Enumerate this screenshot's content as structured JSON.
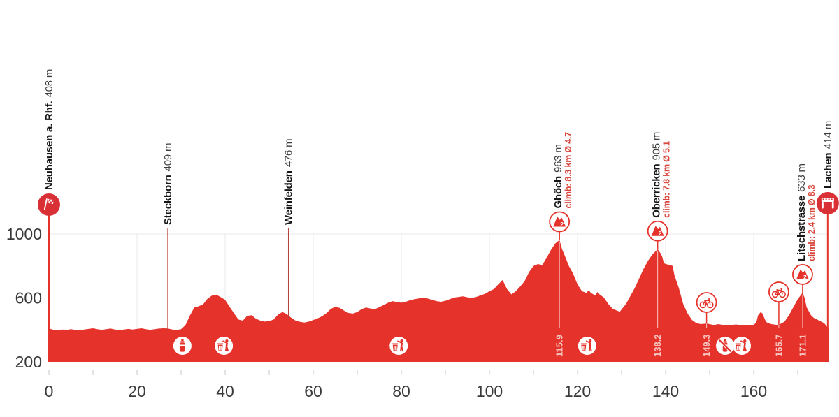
{
  "colors": {
    "red": "#e5332b",
    "badge_red": "#d93036",
    "dark_red_line": "#b5433c",
    "pink": "#f6c3bf",
    "climb_text": "#d9453b",
    "grid": "#e8e8e8",
    "tick": "#c9c9c9",
    "axis_text": "#3a3a3a",
    "label_dark": "#161616",
    "label_alt": "#3f3f3f"
  },
  "chart_data": {
    "type": "area",
    "title": "",
    "xlabel": "",
    "ylabel": "",
    "x_unit": "km",
    "y_unit": "m",
    "x_ticks": [
      0,
      20,
      40,
      60,
      80,
      100,
      120,
      140,
      160
    ],
    "x_minor_step": 10,
    "x_max_km": 177,
    "y_ticks": [
      200,
      600,
      1000
    ],
    "profile_points": [
      [
        0,
        408
      ],
      [
        1,
        401
      ],
      [
        2,
        398
      ],
      [
        3,
        402
      ],
      [
        4,
        400
      ],
      [
        5,
        404
      ],
      [
        6,
        400
      ],
      [
        7,
        398
      ],
      [
        8,
        402
      ],
      [
        9,
        406
      ],
      [
        10,
        410
      ],
      [
        11,
        404
      ],
      [
        12,
        400
      ],
      [
        13,
        404
      ],
      [
        14,
        408
      ],
      [
        15,
        402
      ],
      [
        16,
        398
      ],
      [
        17,
        402
      ],
      [
        18,
        406
      ],
      [
        19,
        402
      ],
      [
        20,
        406
      ],
      [
        21,
        410
      ],
      [
        22,
        404
      ],
      [
        23,
        400
      ],
      [
        24,
        404
      ],
      [
        25,
        408
      ],
      [
        26,
        410
      ],
      [
        27,
        409
      ],
      [
        28,
        402
      ],
      [
        29,
        400
      ],
      [
        30,
        404
      ],
      [
        31,
        430
      ],
      [
        32,
        490
      ],
      [
        33,
        540
      ],
      [
        34,
        548
      ],
      [
        35,
        560
      ],
      [
        36,
        595
      ],
      [
        37,
        615
      ],
      [
        38,
        620
      ],
      [
        39,
        605
      ],
      [
        40,
        588
      ],
      [
        41,
        545
      ],
      [
        42,
        505
      ],
      [
        43,
        465
      ],
      [
        44,
        458
      ],
      [
        45,
        488
      ],
      [
        46,
        492
      ],
      [
        47,
        470
      ],
      [
        48,
        458
      ],
      [
        49,
        452
      ],
      [
        50,
        455
      ],
      [
        51,
        465
      ],
      [
        52,
        495
      ],
      [
        53,
        512
      ],
      [
        54,
        498
      ],
      [
        55,
        476
      ],
      [
        56,
        458
      ],
      [
        57,
        450
      ],
      [
        58,
        446
      ],
      [
        59,
        452
      ],
      [
        60,
        462
      ],
      [
        61,
        472
      ],
      [
        62,
        485
      ],
      [
        63,
        505
      ],
      [
        64,
        532
      ],
      [
        65,
        545
      ],
      [
        66,
        538
      ],
      [
        67,
        520
      ],
      [
        68,
        506
      ],
      [
        69,
        502
      ],
      [
        70,
        512
      ],
      [
        71,
        530
      ],
      [
        72,
        540
      ],
      [
        73,
        534
      ],
      [
        74,
        530
      ],
      [
        75,
        542
      ],
      [
        76,
        556
      ],
      [
        77,
        570
      ],
      [
        78,
        580
      ],
      [
        79,
        574
      ],
      [
        80,
        570
      ],
      [
        81,
        576
      ],
      [
        82,
        586
      ],
      [
        83,
        592
      ],
      [
        84,
        597
      ],
      [
        85,
        602
      ],
      [
        86,
        596
      ],
      [
        87,
        588
      ],
      [
        88,
        580
      ],
      [
        89,
        576
      ],
      [
        90,
        582
      ],
      [
        91,
        592
      ],
      [
        92,
        602
      ],
      [
        93,
        606
      ],
      [
        94,
        610
      ],
      [
        95,
        604
      ],
      [
        96,
        600
      ],
      [
        97,
        606
      ],
      [
        98,
        616
      ],
      [
        99,
        626
      ],
      [
        100,
        642
      ],
      [
        101,
        655
      ],
      [
        102,
        685
      ],
      [
        103,
        712
      ],
      [
        104,
        655
      ],
      [
        105,
        622
      ],
      [
        106,
        642
      ],
      [
        107,
        672
      ],
      [
        108,
        705
      ],
      [
        109,
        762
      ],
      [
        110,
        800
      ],
      [
        111,
        812
      ],
      [
        112,
        806
      ],
      [
        113,
        852
      ],
      [
        114,
        902
      ],
      [
        115,
        942
      ],
      [
        115.9,
        963
      ],
      [
        116.5,
        905
      ],
      [
        117,
        872
      ],
      [
        118,
        802
      ],
      [
        119,
        752
      ],
      [
        120,
        685
      ],
      [
        121,
        642
      ],
      [
        122,
        632
      ],
      [
        122.6,
        648
      ],
      [
        123,
        632
      ],
      [
        124,
        616
      ],
      [
        124.6,
        638
      ],
      [
        125,
        622
      ],
      [
        126,
        602
      ],
      [
        127,
        562
      ],
      [
        128,
        532
      ],
      [
        129,
        520
      ],
      [
        129.6,
        514
      ],
      [
        130,
        528
      ],
      [
        131,
        562
      ],
      [
        132,
        612
      ],
      [
        133,
        662
      ],
      [
        134,
        722
      ],
      [
        135,
        782
      ],
      [
        136,
        832
      ],
      [
        137,
        872
      ],
      [
        138.2,
        905
      ],
      [
        138.8,
        882
      ],
      [
        139.2,
        860
      ],
      [
        139.6,
        818
      ],
      [
        140,
        812
      ],
      [
        141,
        806
      ],
      [
        141.6,
        800
      ],
      [
        142,
        742
      ],
      [
        143,
        662
      ],
      [
        144,
        562
      ],
      [
        145,
        502
      ],
      [
        146,
        462
      ],
      [
        147,
        442
      ],
      [
        148,
        436
      ],
      [
        149.3,
        440
      ],
      [
        150,
        436
      ],
      [
        151,
        431
      ],
      [
        152,
        436
      ],
      [
        153,
        431
      ],
      [
        154,
        428
      ],
      [
        155,
        431
      ],
      [
        156,
        434
      ],
      [
        157,
        429
      ],
      [
        158,
        431
      ],
      [
        159,
        428
      ],
      [
        160,
        431
      ],
      [
        160.6,
        448
      ],
      [
        161,
        492
      ],
      [
        161.6,
        512
      ],
      [
        162,
        502
      ],
      [
        162.6,
        462
      ],
      [
        163,
        446
      ],
      [
        164,
        436
      ],
      [
        165,
        432
      ],
      [
        165.7,
        430
      ],
      [
        166,
        436
      ],
      [
        167,
        452
      ],
      [
        168,
        492
      ],
      [
        169,
        542
      ],
      [
        170,
        592
      ],
      [
        171.1,
        633
      ],
      [
        171.6,
        598
      ],
      [
        172,
        542
      ],
      [
        173,
        492
      ],
      [
        173.6,
        476
      ],
      [
        174,
        470
      ],
      [
        175,
        456
      ],
      [
        176,
        442
      ],
      [
        176.6,
        421
      ],
      [
        177,
        414
      ]
    ]
  },
  "waypoints": [
    {
      "name": "Neuhausen a. Rhf.",
      "altitude": "408 m",
      "km": 0,
      "type": "start"
    },
    {
      "name": "Steckborn",
      "altitude": "409 m",
      "km": 27,
      "type": "town"
    },
    {
      "name": "Weinfelden",
      "altitude": "476 m",
      "km": 54.4,
      "type": "town"
    },
    {
      "name": "Ghöch",
      "altitude": "963 m",
      "km": 115.9,
      "type": "climb",
      "climb_info": "climb: 8.3 km Ø 4.7",
      "category_label": "2"
    },
    {
      "name": "Oberricken",
      "altitude": "905 m",
      "km": 138.2,
      "type": "climb",
      "climb_info": "climb: 7.8 km Ø 5.1",
      "category_label": "2"
    },
    {
      "name": "Litschstrasse",
      "altitude": "633 m",
      "km": 171.1,
      "type": "climb",
      "climb_info": "climb: 2.4 km Ø 8.3",
      "category_label": "2"
    },
    {
      "name": "Lachen",
      "altitude": "414 m",
      "km": 176.8,
      "type": "finish"
    }
  ],
  "km_markers": [
    {
      "label": "115.9",
      "km": 115.9,
      "kind": "summit"
    },
    {
      "label": "138.2",
      "km": 138.2,
      "kind": "summit"
    },
    {
      "label": "149.3",
      "km": 149.3,
      "kind": "sprint"
    },
    {
      "label": "165.7",
      "km": 165.7,
      "kind": "sprint"
    },
    {
      "label": "171.1",
      "km": 171.1,
      "kind": "summit"
    }
  ],
  "course_icons": [
    {
      "icon": "bottle-icon",
      "km": 30.3
    },
    {
      "icon": "waste-zone-icon",
      "km": 39.7
    },
    {
      "icon": "waste-zone-icon",
      "km": 79.4
    },
    {
      "icon": "waste-zone-icon",
      "km": 122.2
    },
    {
      "icon": "no-bottle-icon",
      "km": 153.5
    },
    {
      "icon": "waste-zone-icon",
      "km": 157.3
    }
  ]
}
